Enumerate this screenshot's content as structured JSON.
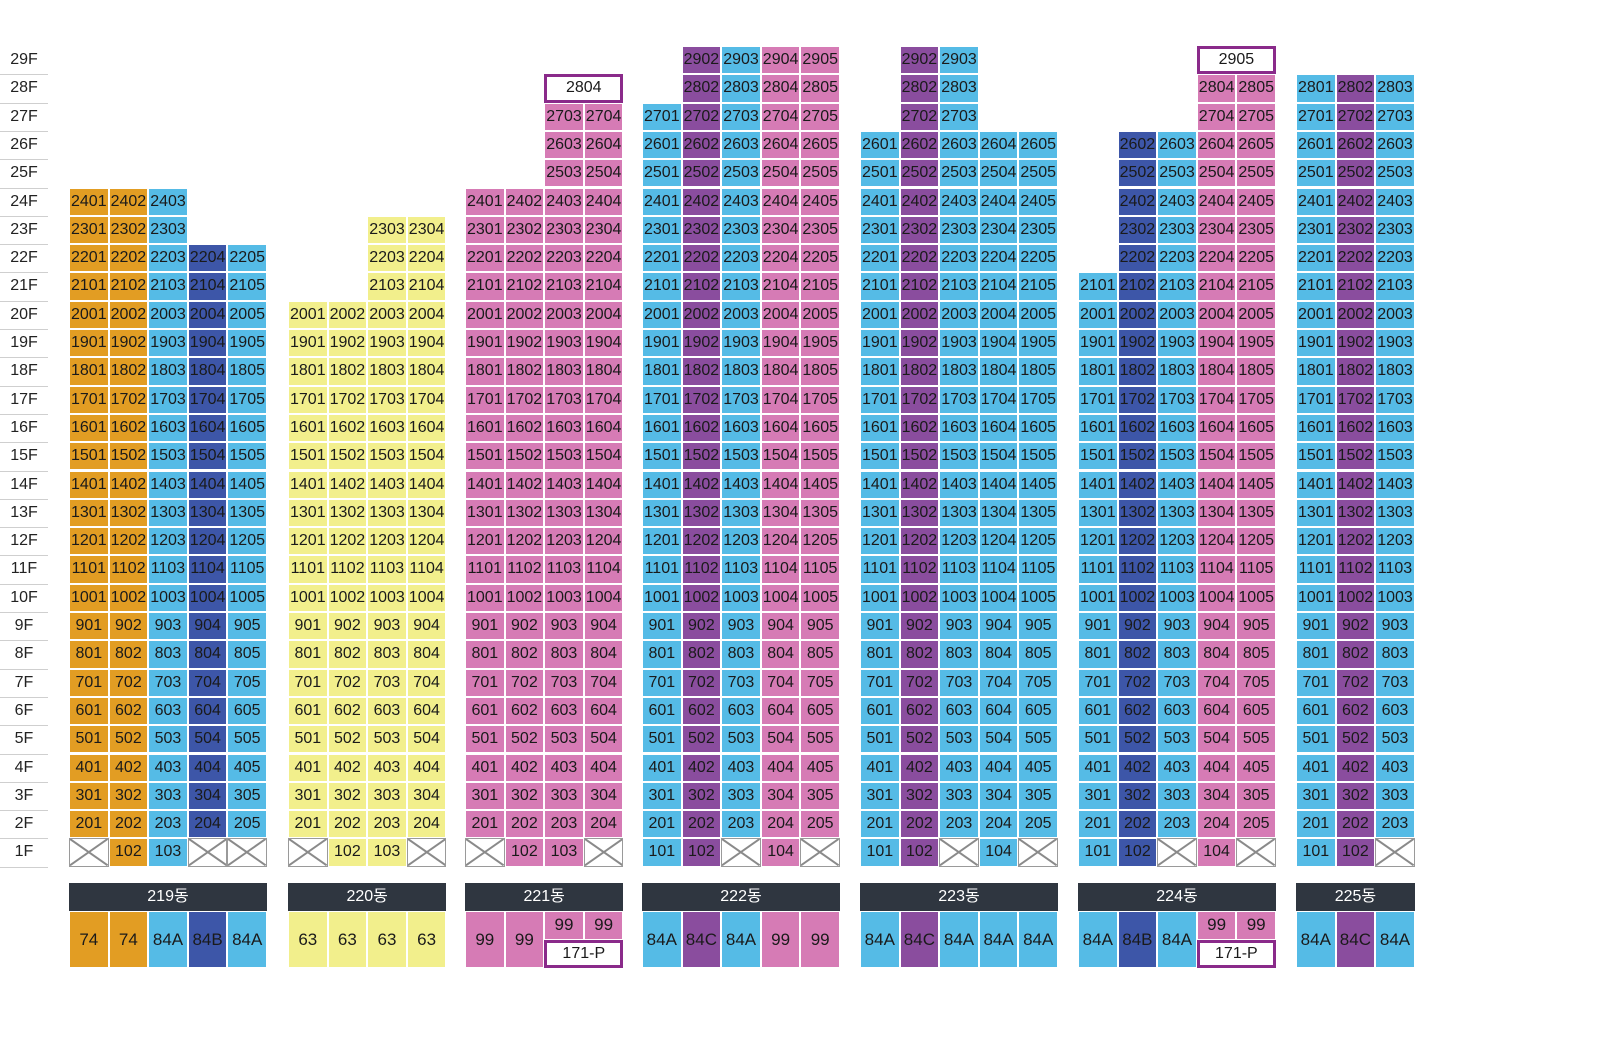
{
  "floors": [
    "29F",
    "28F",
    "27F",
    "26F",
    "25F",
    "24F",
    "23F",
    "22F",
    "21F",
    "20F",
    "19F",
    "18F",
    "17F",
    "16F",
    "15F",
    "14F",
    "13F",
    "12F",
    "11F",
    "10F",
    "9F",
    "8F",
    "7F",
    "6F",
    "5F",
    "4F",
    "3F",
    "2F",
    "1F"
  ],
  "colors": {
    "t63": "#f2ef8c",
    "t74": "#e29d23",
    "t84A": "#55bbe6",
    "t84B": "#3d56a8",
    "t84C": "#8a4d9e",
    "t99": "#d67bb5",
    "header": "#2f3640",
    "highlight_border": "#8a2a8a"
  },
  "buildings": [
    {
      "name": "219동",
      "columns": [
        {
          "type": "74",
          "top": 24,
          "one_f": "x"
        },
        {
          "type": "74",
          "top": 24,
          "one_f": "102"
        },
        {
          "type": "84A",
          "top": 24,
          "one_f": "103"
        },
        {
          "type": "84B",
          "top": 22,
          "one_f": "x"
        },
        {
          "type": "84A",
          "top": 22,
          "one_f": "x"
        }
      ],
      "type_labels": [
        "74",
        "74",
        "84A",
        "84B",
        "84A"
      ]
    },
    {
      "name": "220동",
      "columns": [
        {
          "type": "63",
          "top": 20,
          "one_f": "x"
        },
        {
          "type": "63",
          "top": 20,
          "one_f": "102"
        },
        {
          "type": "63",
          "top": 23,
          "one_f": "103"
        },
        {
          "type": "63",
          "top": 23,
          "one_f": "x"
        }
      ],
      "type_labels": [
        "63",
        "63",
        "63",
        "63"
      ]
    },
    {
      "name": "221동",
      "columns": [
        {
          "type": "99",
          "top": 24,
          "one_f": "x"
        },
        {
          "type": "99",
          "top": 24,
          "one_f": "102"
        },
        {
          "type": "99",
          "top": 27,
          "one_f": "103"
        },
        {
          "type": "99",
          "top": 27,
          "one_f": "x"
        }
      ],
      "boxed_unit": {
        "label": "2804",
        "floor": 28,
        "col_start": 2,
        "col_span": 2
      },
      "type_labels": [
        "99",
        "99"
      ],
      "penthouse": {
        "units": [
          "99",
          "99"
        ],
        "label": "171-P",
        "col_start": 2,
        "col_span": 2
      }
    },
    {
      "name": "222동",
      "columns": [
        {
          "type": "84A",
          "top": 27,
          "one_f": "101"
        },
        {
          "type": "84C",
          "top": 29,
          "one_f": "102"
        },
        {
          "type": "84A",
          "top": 29,
          "one_f": "x"
        },
        {
          "type": "99",
          "top": 29,
          "one_f": "104"
        },
        {
          "type": "99",
          "top": 29,
          "one_f": "x"
        }
      ],
      "type_labels": [
        "84A",
        "84C",
        "84A",
        "99",
        "99"
      ]
    },
    {
      "name": "223동",
      "columns": [
        {
          "type": "84A",
          "top": 26,
          "one_f": "101"
        },
        {
          "type": "84C",
          "top": 29,
          "one_f": "102"
        },
        {
          "type": "84A",
          "top": 29,
          "one_f": "x"
        },
        {
          "type": "84A",
          "top": 26,
          "one_f": "104"
        },
        {
          "type": "84A",
          "top": 26,
          "one_f": "x"
        }
      ],
      "type_labels": [
        "84A",
        "84C",
        "84A",
        "84A",
        "84A"
      ]
    },
    {
      "name": "224동",
      "columns": [
        {
          "type": "84A",
          "top": 21,
          "one_f": "101"
        },
        {
          "type": "84B",
          "top": 26,
          "one_f": "102"
        },
        {
          "type": "84A",
          "top": 26,
          "one_f": "x"
        },
        {
          "type": "99",
          "top": 28,
          "one_f": "104"
        },
        {
          "type": "99",
          "top": 28,
          "one_f": "x"
        }
      ],
      "boxed_unit": {
        "label": "2905",
        "floor": 29,
        "col_start": 3,
        "col_span": 2
      },
      "type_labels": [
        "84A",
        "84B",
        "84A"
      ],
      "penthouse": {
        "units": [
          "99",
          "99"
        ],
        "label": "171-P",
        "col_start": 3,
        "col_span": 2
      }
    },
    {
      "name": "225동",
      "columns": [
        {
          "type": "84A",
          "top": 28,
          "one_f": "101"
        },
        {
          "type": "84C",
          "top": 28,
          "one_f": "102"
        },
        {
          "type": "84A",
          "top": 28,
          "one_f": "x"
        }
      ],
      "type_labels": [
        "84A",
        "84C",
        "84A"
      ]
    }
  ]
}
